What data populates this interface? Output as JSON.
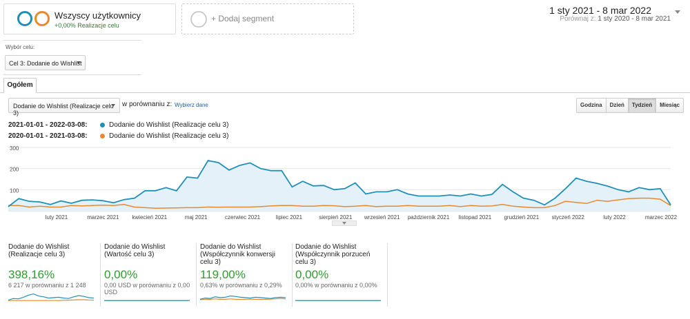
{
  "segment": {
    "title": "Wszyscy użytkownicy",
    "subtitle": "+0,00% Realizacje celu",
    "add_label": "+ Dodaj segment"
  },
  "date_range": {
    "main": "1 sty 2021 - 8 mar 2022",
    "compare_label": "Porównaj z:",
    "compare_range": "1 sty 2020 - 8 mar 2021"
  },
  "goal_select": {
    "label": "Wybór celu:",
    "value": "Cel 3: Dodanie do Wishlist"
  },
  "tabs": [
    {
      "label": "Ogółem"
    }
  ],
  "metric_select": {
    "value": "Dodanie do Wishlist (Realizacje celu 3)",
    "vs_label": "w porównaniu z:",
    "choose_link": "Wybierz dane"
  },
  "granularity": {
    "options": [
      "Godzina",
      "Dzień",
      "Tydzień",
      "Miesiąc"
    ],
    "selected": "Tydzień"
  },
  "colors": {
    "current": "#1f8fb8",
    "previous": "#e8892e",
    "fill": "#e4f1f9",
    "positive": "#2e9c2e"
  },
  "legend": [
    {
      "range": "2021-01-01 - 2022-03-08:",
      "label": "Dodanie do Wishlist (Realizacje celu 3)"
    },
    {
      "range": "2020-01-01 - 2021-03-08:",
      "label": "Dodanie do Wishlist (Realizacje celu 3)"
    }
  ],
  "chart_data": {
    "type": "line",
    "y_ticks": [
      "300",
      "200",
      "100"
    ],
    "ylim": [
      0,
      300
    ],
    "grid": true,
    "x_labels": [
      "luty 2021",
      "marzec 2021",
      "kwiecień 2021",
      "maj 2021",
      "czerwiec 2021",
      "lipiec 2021",
      "sierpień 2021",
      "wrzesień 2021",
      "październik 2021",
      "listopad 2021",
      "grudzień 2021",
      "styczeń 2022",
      "luty 2022",
      "marzec 2022"
    ],
    "series": [
      {
        "values": [
          20,
          58,
          45,
          42,
          30,
          47,
          36,
          50,
          52,
          48,
          38,
          53,
          60,
          95,
          95,
          110,
          95,
          160,
          155,
          238,
          228,
          193,
          215,
          227,
          200,
          190,
          190,
          113,
          140,
          118,
          120,
          100,
          105,
          132,
          80,
          90,
          90,
          100,
          80,
          70,
          70,
          70,
          75,
          70,
          80,
          70,
          78,
          125,
          90,
          60,
          50,
          28,
          60,
          105,
          155,
          140,
          130,
          117,
          100,
          90,
          110,
          100,
          105,
          28
        ]
      },
      {
        "values": [
          25,
          25,
          18,
          22,
          18,
          18,
          25,
          23,
          25,
          27,
          25,
          30,
          18,
          15,
          12,
          13,
          14,
          15,
          15,
          18,
          17,
          18,
          18,
          18,
          20,
          23,
          25,
          25,
          22,
          22,
          25,
          24,
          20,
          22,
          25,
          20,
          22,
          22,
          25,
          22,
          22,
          22,
          25,
          20,
          25,
          22,
          23,
          30,
          22,
          18,
          15,
          15,
          25,
          45,
          40,
          35,
          50,
          45,
          52,
          58,
          60,
          60,
          55,
          25
        ]
      }
    ]
  },
  "scorecards": [
    {
      "name": "Dodanie do Wishlist (Realizacje celu 3)",
      "value": "398,16%",
      "compare": "6 217 w porównaniu z 1 248",
      "spark_current": [
        20,
        40,
        35,
        55,
        80,
        95,
        70,
        60,
        45,
        50,
        55,
        45,
        40,
        60,
        75,
        65,
        50,
        45
      ],
      "spark_previous": [
        15,
        15,
        15,
        15,
        15,
        15,
        15,
        15,
        15,
        15,
        15,
        18,
        20,
        22,
        25,
        25,
        22,
        20
      ]
    },
    {
      "name": "Dodanie do Wishlist (Wartość celu 3)",
      "value": "0,00%",
      "compare": "0,00 USD w porównaniu z 0,00 USD",
      "spark_current": [
        15,
        15,
        15,
        15,
        15,
        15,
        15,
        15,
        15,
        15,
        15,
        15,
        15,
        15,
        15,
        15,
        15,
        15
      ],
      "spark_previous": [
        15,
        15,
        15,
        15,
        15,
        15,
        15,
        15,
        15,
        15,
        15,
        15,
        15,
        15,
        15,
        15,
        15,
        15
      ]
    },
    {
      "name": "Dodanie do Wishlist (Współczynnik konwersji celu 3)",
      "value": "119,00%",
      "compare": "0,63% w porównaniu z 0,29%",
      "spark_current": [
        30,
        45,
        40,
        60,
        50,
        55,
        70,
        65,
        55,
        50,
        45,
        55,
        50,
        45,
        40,
        50,
        55,
        50
      ],
      "spark_previous": [
        25,
        30,
        30,
        35,
        30,
        30,
        35,
        30,
        28,
        30,
        32,
        30,
        28,
        30,
        32,
        35,
        40,
        35
      ]
    },
    {
      "name": "Dodanie do Wishlist (Współczynnik porzuceń celu 3)",
      "value": "0,00%",
      "compare": "0,00% w porównaniu z 0,00%",
      "spark_current": [
        15,
        15,
        15,
        15,
        15,
        15,
        15,
        15,
        15,
        15,
        15,
        15,
        15,
        15,
        15,
        15,
        15,
        15
      ],
      "spark_previous": [
        15,
        15,
        15,
        15,
        15,
        15,
        15,
        15,
        15,
        15,
        15,
        15,
        15,
        15,
        15,
        15,
        15,
        15
      ]
    }
  ]
}
